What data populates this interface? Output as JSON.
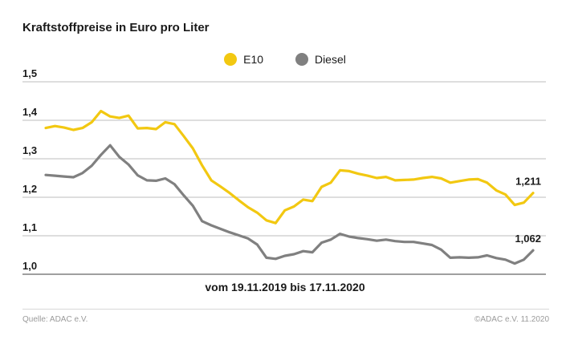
{
  "chart_data": {
    "type": "line",
    "title": "Kraftstoffpreise in Euro pro Liter",
    "subtitle": "vom 19.11.2019 bis 17.11.2020",
    "xlabel": "",
    "ylabel": "",
    "ylim": [
      1.0,
      1.5
    ],
    "yticks": [
      "1,0",
      "1,1",
      "1,2",
      "1,3",
      "1,4",
      "1,5"
    ],
    "grid": true,
    "legend_position": "top-center",
    "series": [
      {
        "name": "E10",
        "color": "#f2c811",
        "end_label": "1,211",
        "values": [
          1.38,
          1.385,
          1.381,
          1.375,
          1.38,
          1.395,
          1.424,
          1.41,
          1.406,
          1.412,
          1.379,
          1.38,
          1.377,
          1.395,
          1.39,
          1.359,
          1.327,
          1.283,
          1.244,
          1.228,
          1.211,
          1.192,
          1.174,
          1.16,
          1.14,
          1.133,
          1.166,
          1.176,
          1.194,
          1.19,
          1.227,
          1.238,
          1.27,
          1.268,
          1.261,
          1.256,
          1.25,
          1.253,
          1.244,
          1.245,
          1.246,
          1.25,
          1.253,
          1.249,
          1.238,
          1.242,
          1.246,
          1.247,
          1.238,
          1.218,
          1.207,
          1.18,
          1.186,
          1.211
        ]
      },
      {
        "name": "Diesel",
        "color": "#808080",
        "end_label": "1,062",
        "values": [
          1.258,
          1.256,
          1.254,
          1.252,
          1.263,
          1.282,
          1.31,
          1.335,
          1.305,
          1.285,
          1.257,
          1.244,
          1.243,
          1.249,
          1.234,
          1.205,
          1.178,
          1.138,
          1.127,
          1.118,
          1.109,
          1.101,
          1.093,
          1.077,
          1.043,
          1.04,
          1.048,
          1.052,
          1.06,
          1.057,
          1.082,
          1.09,
          1.105,
          1.098,
          1.094,
          1.091,
          1.087,
          1.09,
          1.086,
          1.084,
          1.084,
          1.08,
          1.076,
          1.064,
          1.043,
          1.044,
          1.043,
          1.044,
          1.049,
          1.042,
          1.038,
          1.028,
          1.038,
          1.062
        ]
      }
    ]
  },
  "footer": {
    "source": "Quelle: ADAC e.V.",
    "copyright": "©ADAC e.V. 11.2020"
  }
}
